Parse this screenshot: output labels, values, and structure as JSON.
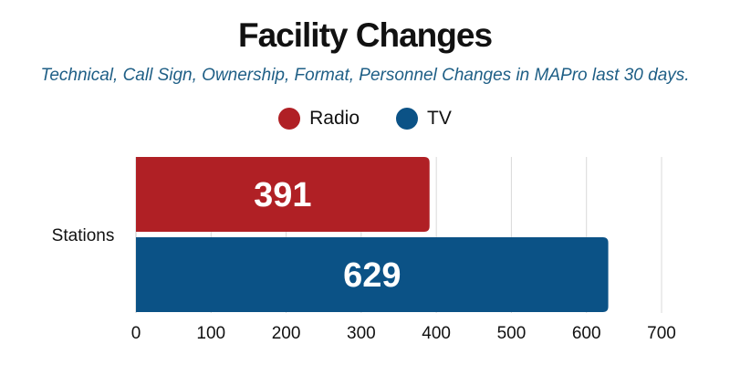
{
  "chart_data": {
    "type": "bar",
    "orientation": "horizontal",
    "title": "Facility Changes",
    "subtitle": "Technical, Call Sign, Ownership, Format, Personnel Changes in MAPro last 30 days.",
    "categories": [
      "Stations"
    ],
    "series": [
      {
        "name": "Radio",
        "values": [
          391
        ],
        "color": "#b02025"
      },
      {
        "name": "TV",
        "values": [
          629
        ],
        "color": "#0b5286"
      }
    ],
    "xlim": [
      0,
      700
    ],
    "xticks": [
      "0",
      "100",
      "200",
      "300",
      "400",
      "500",
      "600",
      "700"
    ],
    "xlabel": "",
    "ylabel": "",
    "grid": true,
    "legend": "top-center",
    "data_labels": [
      "391",
      "629"
    ]
  }
}
